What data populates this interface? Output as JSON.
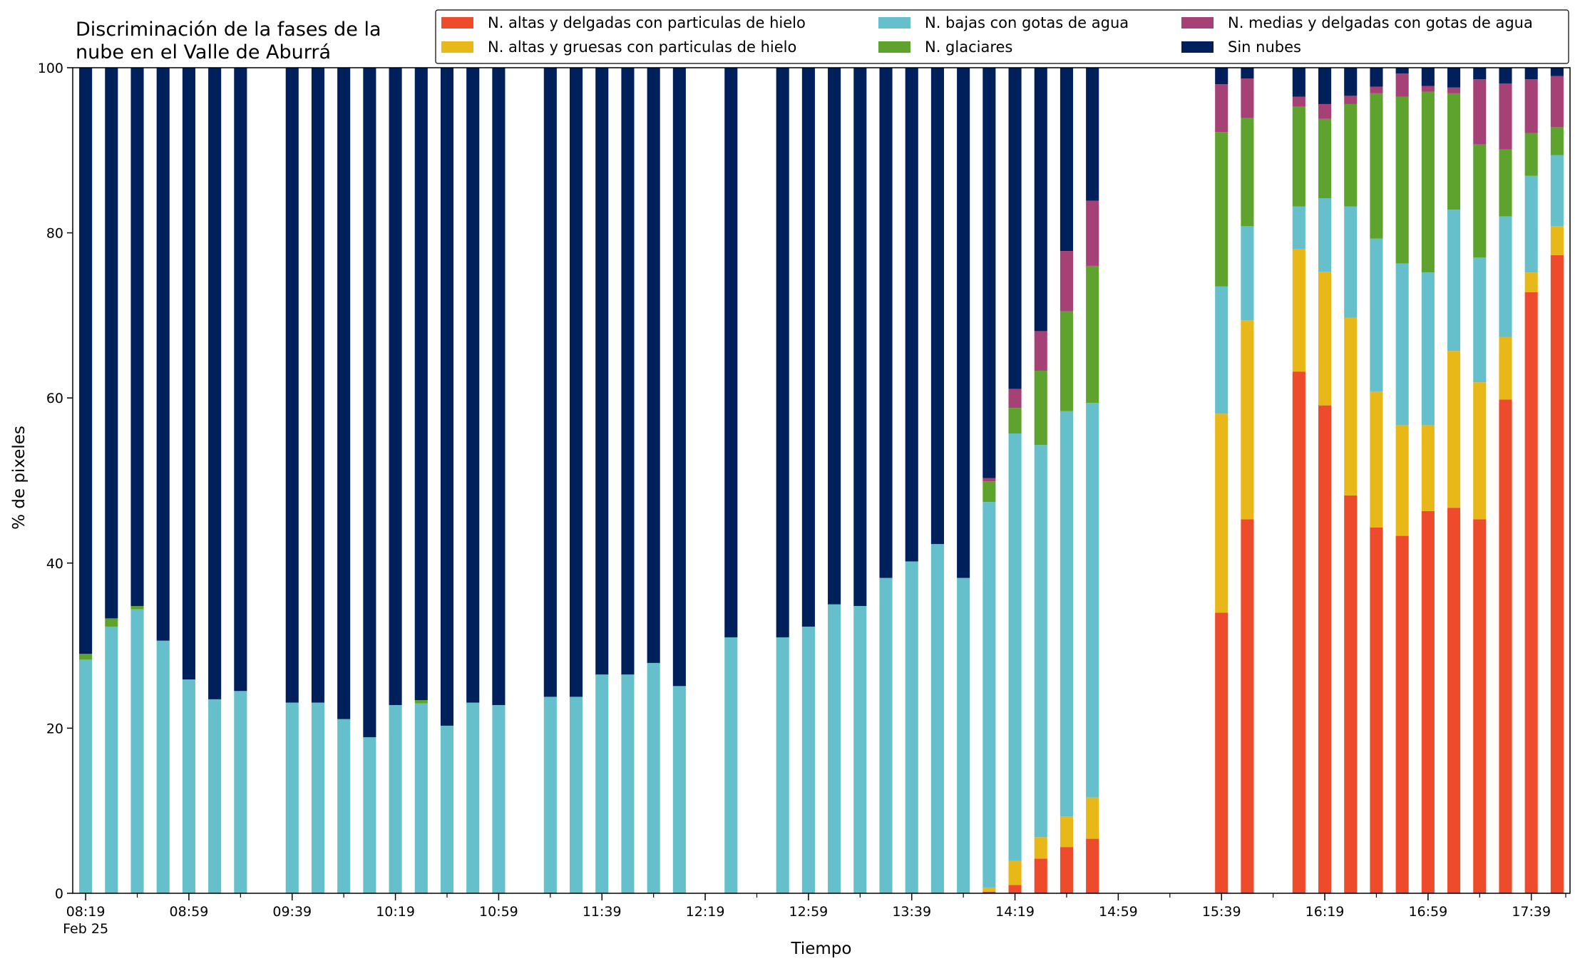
{
  "chart_data": {
    "type": "bar",
    "stacked": true,
    "title_lines": [
      "Discriminación de la fases de la",
      "nube en el Valle de Aburrá"
    ],
    "xlabel": "Tiempo",
    "ylabel": "% de pixeles",
    "ylim": [
      0,
      100
    ],
    "yticks": [
      0,
      20,
      40,
      60,
      80,
      100
    ],
    "legend_placement": "top-right",
    "grid": false,
    "date_label": "Feb 25",
    "xticks": [
      {
        "label": "08:19",
        "slot": 0
      },
      {
        "label": "08:59",
        "slot": 4
      },
      {
        "label": "09:39",
        "slot": 8
      },
      {
        "label": "10:19",
        "slot": 12
      },
      {
        "label": "10:59",
        "slot": 16
      },
      {
        "label": "11:39",
        "slot": 20
      },
      {
        "label": "12:19",
        "slot": 24
      },
      {
        "label": "12:59",
        "slot": 28
      },
      {
        "label": "13:39",
        "slot": 32
      },
      {
        "label": "14:19",
        "slot": 36
      },
      {
        "label": "14:59",
        "slot": 40
      },
      {
        "label": "15:39",
        "slot": 44
      },
      {
        "label": "16:19",
        "slot": 48
      },
      {
        "label": "16:59",
        "slot": 52
      },
      {
        "label": "17:39",
        "slot": 56
      }
    ],
    "series": [
      {
        "name": "N. altas y delgadas con particulas de hielo",
        "color": "#ee4a2c",
        "values": [
          0,
          0,
          0,
          0,
          0,
          0,
          0,
          null,
          0,
          0,
          0,
          0,
          0,
          0,
          0,
          0,
          0,
          null,
          0,
          0,
          0,
          0,
          0,
          0,
          null,
          0,
          null,
          0,
          0,
          0,
          0,
          0,
          0,
          0,
          0,
          0.2,
          1,
          4.2,
          5.6,
          6.6,
          null,
          null,
          null,
          null,
          34,
          45.3,
          null,
          63.2,
          59.1,
          48.2,
          44.3,
          43.3,
          46.3,
          46.7,
          45.3,
          59.8,
          72.8,
          77.3
        ]
      },
      {
        "name": "N. altas y gruesas con particulas de hielo",
        "color": "#e8b818",
        "values": [
          0,
          0,
          0,
          0,
          0,
          0,
          0,
          null,
          0,
          0,
          0,
          0,
          0,
          0,
          0,
          0,
          0,
          null,
          0,
          0,
          0,
          0,
          0,
          0,
          null,
          0,
          null,
          0,
          0,
          0,
          0,
          0,
          0,
          0,
          0,
          0.5,
          2.9,
          2.6,
          3.7,
          5,
          null,
          null,
          null,
          null,
          24.1,
          24.1,
          null,
          14.8,
          16.2,
          21.5,
          16.5,
          13.4,
          10.4,
          19,
          16.6,
          7.6,
          2.4,
          3.5
        ]
      },
      {
        "name": "N. bajas con gotas de agua",
        "color": "#66c0cb",
        "values": [
          28.3,
          32.3,
          34.4,
          30.6,
          25.9,
          23.5,
          24.5,
          null,
          23.1,
          23.1,
          21.1,
          18.9,
          22.8,
          23,
          20.3,
          23.1,
          22.8,
          null,
          23.8,
          23.8,
          26.5,
          26.5,
          27.9,
          25.1,
          null,
          31,
          null,
          31,
          32.3,
          35,
          34.8,
          38.2,
          40.2,
          42.3,
          38.2,
          46.7,
          51.8,
          47.5,
          49.1,
          47.8,
          null,
          null,
          null,
          null,
          15.4,
          11.4,
          null,
          5.2,
          8.9,
          13.5,
          18.5,
          19.6,
          18.5,
          17.1,
          15.1,
          14.6,
          11.7,
          8.6
        ]
      },
      {
        "name": "N. glaciares",
        "color": "#5ea32e",
        "values": [
          0.7,
          1,
          0.4,
          0,
          0,
          0,
          0,
          null,
          0,
          0,
          0,
          0,
          0,
          0.4,
          0,
          0,
          0,
          null,
          0,
          0,
          0,
          0,
          0,
          0,
          null,
          0,
          null,
          0,
          0,
          0,
          0,
          0,
          0,
          0,
          0,
          2.5,
          3.1,
          9,
          12.1,
          16.6,
          null,
          null,
          null,
          null,
          18.7,
          13.1,
          null,
          12.1,
          9.6,
          12.4,
          17.6,
          20.2,
          21.9,
          14.1,
          13.7,
          8.1,
          5.2,
          3.4
        ]
      },
      {
        "name": "N. medias y delgadas con gotas de agua",
        "color": "#a64176",
        "values": [
          0,
          0,
          0,
          0,
          0,
          0,
          0,
          null,
          0,
          0,
          0,
          0,
          0,
          0,
          0,
          0,
          0,
          null,
          0,
          0,
          0,
          0,
          0,
          0,
          null,
          0,
          null,
          0,
          0,
          0,
          0,
          0,
          0,
          0,
          0,
          0.4,
          2.3,
          4.8,
          7.3,
          7.9,
          null,
          null,
          null,
          null,
          5.8,
          4.8,
          null,
          1.2,
          1.8,
          1,
          0.8,
          2.8,
          0.7,
          0.7,
          7.9,
          8,
          6.5,
          6.2
        ]
      },
      {
        "name": "Sin nubes",
        "color": "#00205b",
        "values": [
          71,
          66.7,
          65.2,
          69.4,
          74.1,
          76.5,
          75.5,
          null,
          76.9,
          76.9,
          78.9,
          81.1,
          77.2,
          76.6,
          79.7,
          76.9,
          77.2,
          null,
          76.2,
          76.2,
          73.5,
          73.5,
          72.1,
          74.9,
          null,
          69,
          null,
          69,
          67.7,
          65,
          65.2,
          61.8,
          59.8,
          57.7,
          61.8,
          49.7,
          38.9,
          31.9,
          22.2,
          16.1,
          null,
          null,
          null,
          null,
          2,
          1.3,
          null,
          3.5,
          4.4,
          3.4,
          2.3,
          0.7,
          2.2,
          2.4,
          1.4,
          1.9,
          1.4,
          1
        ]
      }
    ]
  }
}
